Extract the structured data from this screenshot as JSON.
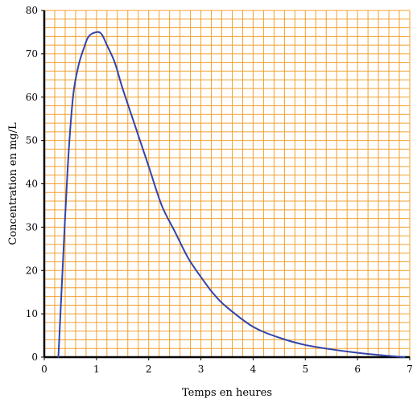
{
  "chart_data": {
    "type": "line",
    "title": "",
    "xlabel": "Temps en heures",
    "ylabel": "Concentration en mg/L",
    "xlim": [
      0,
      7
    ],
    "ylim": [
      0,
      80
    ],
    "x_ticks": [
      "0",
      "1",
      "2",
      "3",
      "4",
      "5",
      "6",
      "7"
    ],
    "y_ticks": [
      "0",
      "10",
      "20",
      "30",
      "40",
      "50",
      "60",
      "70",
      "80"
    ],
    "grid": true,
    "grid_minor_x_step": 0.2,
    "grid_minor_y_step": 2,
    "colors": {
      "grid": "#F0A030",
      "axis": "#000000",
      "line": "#3344AA"
    },
    "series": [
      {
        "values": [
          [
            0.27,
            0
          ],
          [
            0.35,
            20
          ],
          [
            0.45,
            44
          ],
          [
            0.55,
            60
          ],
          [
            0.65,
            67
          ],
          [
            0.75,
            71
          ],
          [
            0.85,
            74
          ],
          [
            1.0,
            75
          ],
          [
            1.1,
            74.5
          ],
          [
            1.2,
            72
          ],
          [
            1.35,
            68
          ],
          [
            1.5,
            62
          ],
          [
            1.75,
            53
          ],
          [
            2.0,
            44
          ],
          [
            2.25,
            35
          ],
          [
            2.5,
            29
          ],
          [
            2.75,
            23
          ],
          [
            3.0,
            18.5
          ],
          [
            3.25,
            14.5
          ],
          [
            3.5,
            11.5
          ],
          [
            4.0,
            7
          ],
          [
            4.5,
            4.5
          ],
          [
            5.0,
            2.8
          ],
          [
            5.5,
            1.8
          ],
          [
            6.0,
            1
          ],
          [
            6.5,
            0.4
          ],
          [
            6.9,
            0
          ]
        ]
      }
    ]
  }
}
